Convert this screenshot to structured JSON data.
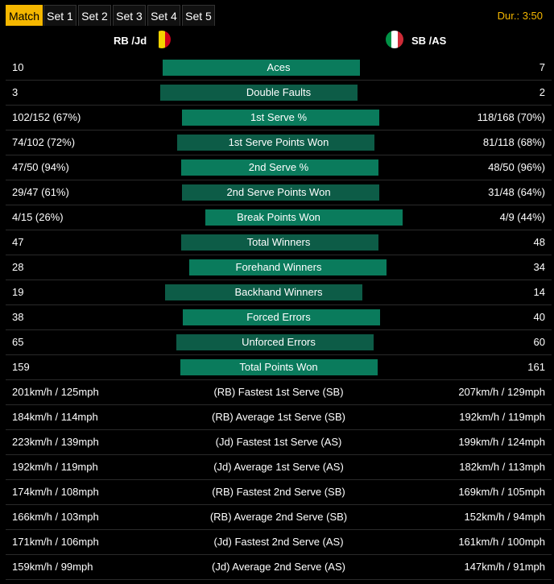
{
  "tabs": [
    "Match",
    "Set 1",
    "Set 2",
    "Set 3",
    "Set 4",
    "Set 5"
  ],
  "duration": "Dur.: 3:50",
  "teams": {
    "left": {
      "name": "RB /Jd",
      "flag_colors": [
        "#000000",
        "#f5d300",
        "#d0021b"
      ]
    },
    "right": {
      "name": "SB /AS",
      "flag_colors": [
        "#009246",
        "#ffffff",
        "#ce2b37"
      ]
    }
  },
  "bar_colors": [
    "#0a7b5c",
    "#0d5c47"
  ],
  "stats": [
    {
      "label": "Aces",
      "left": "10",
      "right": "7",
      "lv": 10,
      "rv": 7
    },
    {
      "label": "Double Faults",
      "left": "3",
      "right": "2",
      "lv": 3,
      "rv": 2
    },
    {
      "label": "1st Serve %",
      "left": "102/152 (67%)",
      "right": "118/168 (70%)",
      "lv": 67,
      "rv": 70
    },
    {
      "label": "1st Serve Points Won",
      "left": "74/102 (72%)",
      "right": "81/118 (68%)",
      "lv": 72,
      "rv": 68
    },
    {
      "label": "2nd Serve %",
      "left": "47/50 (94%)",
      "right": "48/50 (96%)",
      "lv": 94,
      "rv": 96
    },
    {
      "label": "2nd Serve Points Won",
      "left": "29/47 (61%)",
      "right": "31/48 (64%)",
      "lv": 61,
      "rv": 64
    },
    {
      "label": "Break Points Won",
      "left": "4/15 (26%)",
      "right": "4/9 (44%)",
      "lv": 26,
      "rv": 44
    },
    {
      "label": "Total Winners",
      "left": "47",
      "right": "48",
      "lv": 47,
      "rv": 48
    },
    {
      "label": "Forehand Winners",
      "left": "28",
      "right": "34",
      "lv": 28,
      "rv": 34
    },
    {
      "label": "Backhand Winners",
      "left": "19",
      "right": "14",
      "lv": 19,
      "rv": 14
    },
    {
      "label": "Forced Errors",
      "left": "38",
      "right": "40",
      "lv": 38,
      "rv": 40
    },
    {
      "label": "Unforced Errors",
      "left": "65",
      "right": "60",
      "lv": 65,
      "rv": 60
    },
    {
      "label": "Total Points Won",
      "left": "159",
      "right": "161",
      "lv": 159,
      "rv": 161
    }
  ],
  "speeds": [
    {
      "label": "(RB) Fastest 1st Serve  (SB)",
      "left": "201km/h / 125mph",
      "right": "207km/h / 129mph"
    },
    {
      "label": "(RB) Average 1st Serve  (SB)",
      "left": "184km/h / 114mph",
      "right": "192km/h / 119mph"
    },
    {
      "label": "(Jd) Fastest 1st Serve  (AS)",
      "left": "223km/h / 139mph",
      "right": "199km/h / 124mph"
    },
    {
      "label": "(Jd) Average 1st Serve  (AS)",
      "left": "192km/h / 119mph",
      "right": "182km/h / 113mph"
    },
    {
      "label": "(RB) Fastest 2nd Serve  (SB)",
      "left": "174km/h / 108mph",
      "right": "169km/h / 105mph"
    },
    {
      "label": "(RB) Average 2nd Serve  (SB)",
      "left": "166km/h / 103mph",
      "right": "152km/h / 94mph"
    },
    {
      "label": "(Jd) Fastest 2nd Serve  (AS)",
      "left": "171km/h / 106mph",
      "right": "161km/h / 100mph"
    },
    {
      "label": "(Jd) Average 2nd Serve  (AS)",
      "left": "159km/h / 99mph",
      "right": "147km/h / 91mph"
    }
  ]
}
